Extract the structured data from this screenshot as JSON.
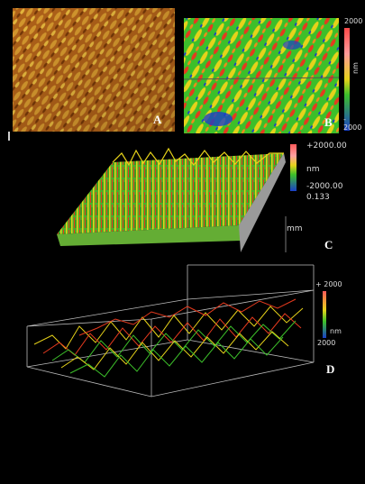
{
  "panels": {
    "a": {
      "label": "A"
    },
    "b": {
      "label": "B",
      "scale_max": "2000",
      "scale_unit": "nm",
      "scale_min": "- 2000"
    },
    "c": {
      "label": "C",
      "scale_max": "+2000.00",
      "scale_unit": "nm",
      "scale_min": "-2000.00",
      "scale_extra": "0.133",
      "axis_unit": "mm"
    },
    "d": {
      "label": "D",
      "scale_max": "+ 2000",
      "scale_unit": "nm",
      "scale_min": "2000"
    }
  },
  "colors": {
    "background": "#000000",
    "afm_orange": "#c8761a",
    "afm_dark": "#7a3a08",
    "heat_red": "#e53a1e",
    "heat_yellow": "#e6d21a",
    "heat_green": "#3cbf2a",
    "heat_blue": "#1a3fc8"
  }
}
